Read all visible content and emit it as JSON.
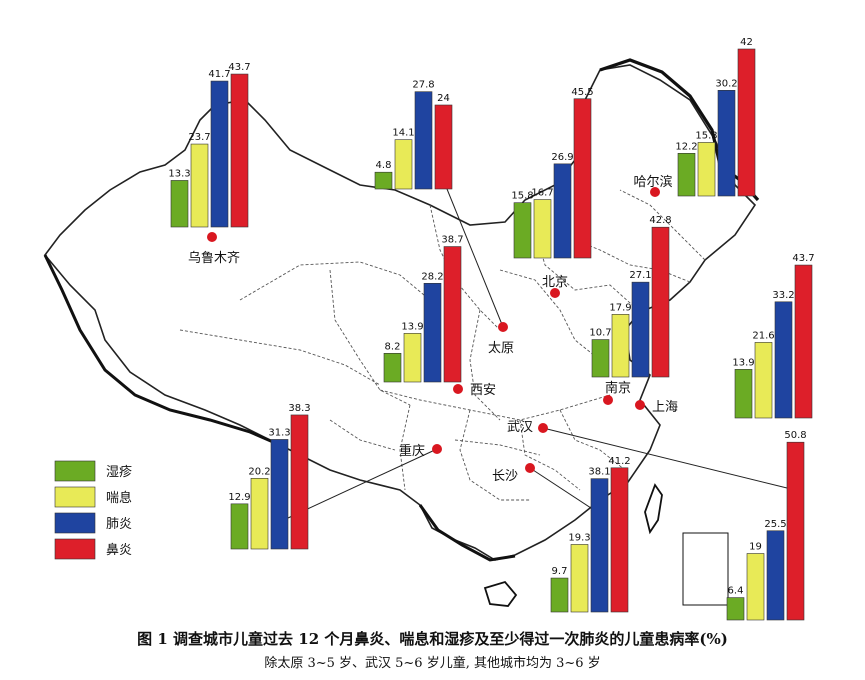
{
  "figure": {
    "caption_title": "图 1   调查城市儿童过去 12 个月鼻炎、喘息和湿疹及至少得过一次肺炎的儿童患病率(%)",
    "caption_note": "除太原 3~5 岁、武汉 5~6 岁儿童, 其他城市均为 3~6 岁"
  },
  "legend": [
    {
      "label": "湿疹",
      "color": "#6bab24"
    },
    {
      "label": "喘息",
      "color": "#e8ea57"
    },
    {
      "label": "肺炎",
      "color": "#1f44a0"
    },
    {
      "label": "鼻炎",
      "color": "#dd1f2a"
    }
  ],
  "chart_data": {
    "type": "bar",
    "categories": [
      "湿疹",
      "喘息",
      "肺炎",
      "鼻炎"
    ],
    "unit": "%",
    "cities": [
      {
        "name": "乌鲁木齐",
        "values": [
          13.3,
          23.7,
          41.7,
          43.7
        ]
      },
      {
        "name": "太原",
        "values": [
          4.8,
          14.1,
          27.8,
          24
        ]
      },
      {
        "name": "北京",
        "values": [
          15.8,
          16.7,
          26.9,
          45.5
        ]
      },
      {
        "name": "哈尔滨",
        "values": [
          12.2,
          15.3,
          30.2,
          42
        ]
      },
      {
        "name": "西安",
        "values": [
          8.2,
          13.9,
          28.2,
          38.7
        ]
      },
      {
        "name": "南京",
        "values": [
          10.7,
          17.9,
          27.1,
          42.8
        ]
      },
      {
        "name": "上海",
        "values": [
          13.9,
          21.6,
          33.2,
          43.7
        ]
      },
      {
        "name": "重庆",
        "values": [
          12.9,
          20.2,
          31.3,
          38.3
        ]
      },
      {
        "name": "长沙",
        "values": [
          9.7,
          19.3,
          38.1,
          41.2
        ]
      },
      {
        "name": "武汉",
        "values": [
          6.4,
          19,
          25.5,
          50.8
        ]
      }
    ]
  }
}
